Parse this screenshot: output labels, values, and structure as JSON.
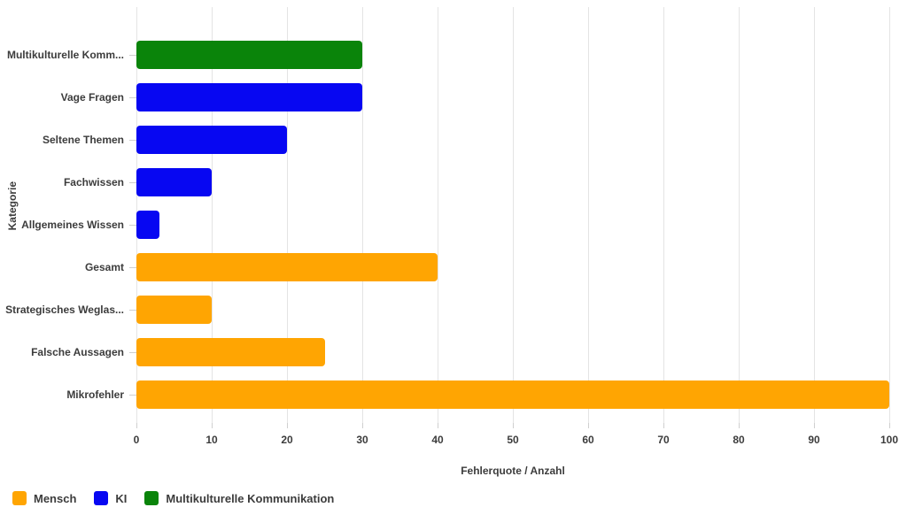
{
  "chart_data": {
    "type": "bar",
    "orientation": "horizontal",
    "title": "",
    "xlabel": "Fehlerquote / Anzahl",
    "ylabel": "Kategorie",
    "xlim": [
      0,
      100
    ],
    "x_ticks": [
      0,
      10,
      20,
      30,
      40,
      50,
      60,
      70,
      80,
      90,
      100
    ],
    "grid": true,
    "legend_position": "bottom-left",
    "categories": [
      "Multikulturelle Komm...",
      "Vage Fragen",
      "Seltene Themen",
      "Fachwissen",
      "Allgemeines Wissen",
      "Gesamt",
      "Strategisches Weglas...",
      "Falsche Aussagen",
      "Mikrofehler"
    ],
    "bars": [
      {
        "label": "Multikulturelle Komm...",
        "value": 30,
        "series": "Multikulturelle Kommunikation"
      },
      {
        "label": "Vage Fragen",
        "value": 30,
        "series": "KI"
      },
      {
        "label": "Seltene Themen",
        "value": 20,
        "series": "KI"
      },
      {
        "label": "Fachwissen",
        "value": 10,
        "series": "KI"
      },
      {
        "label": "Allgemeines Wissen",
        "value": 3,
        "series": "KI"
      },
      {
        "label": "Gesamt",
        "value": 40,
        "series": "Mensch"
      },
      {
        "label": "Strategisches Weglas...",
        "value": 10,
        "series": "Mensch"
      },
      {
        "label": "Falsche Aussagen",
        "value": 25,
        "series": "Mensch"
      },
      {
        "label": "Mikrofehler",
        "value": 100,
        "series": "Mensch"
      }
    ],
    "series_colors": {
      "Mensch": "#FFA502",
      "KI": "#0707F2",
      "Multikulturelle Kommunikation": "#0A840A"
    },
    "legend": [
      {
        "label": "Mensch",
        "color": "#FFA502"
      },
      {
        "label": "KI",
        "color": "#0707F2"
      },
      {
        "label": "Multikulturelle Kommunikation",
        "color": "#0A840A"
      }
    ]
  },
  "colors": {
    "background": "#ffffff",
    "gridline": "#e4e4e4",
    "tick": "#cfcfcf",
    "text": "#3c3c3c"
  }
}
